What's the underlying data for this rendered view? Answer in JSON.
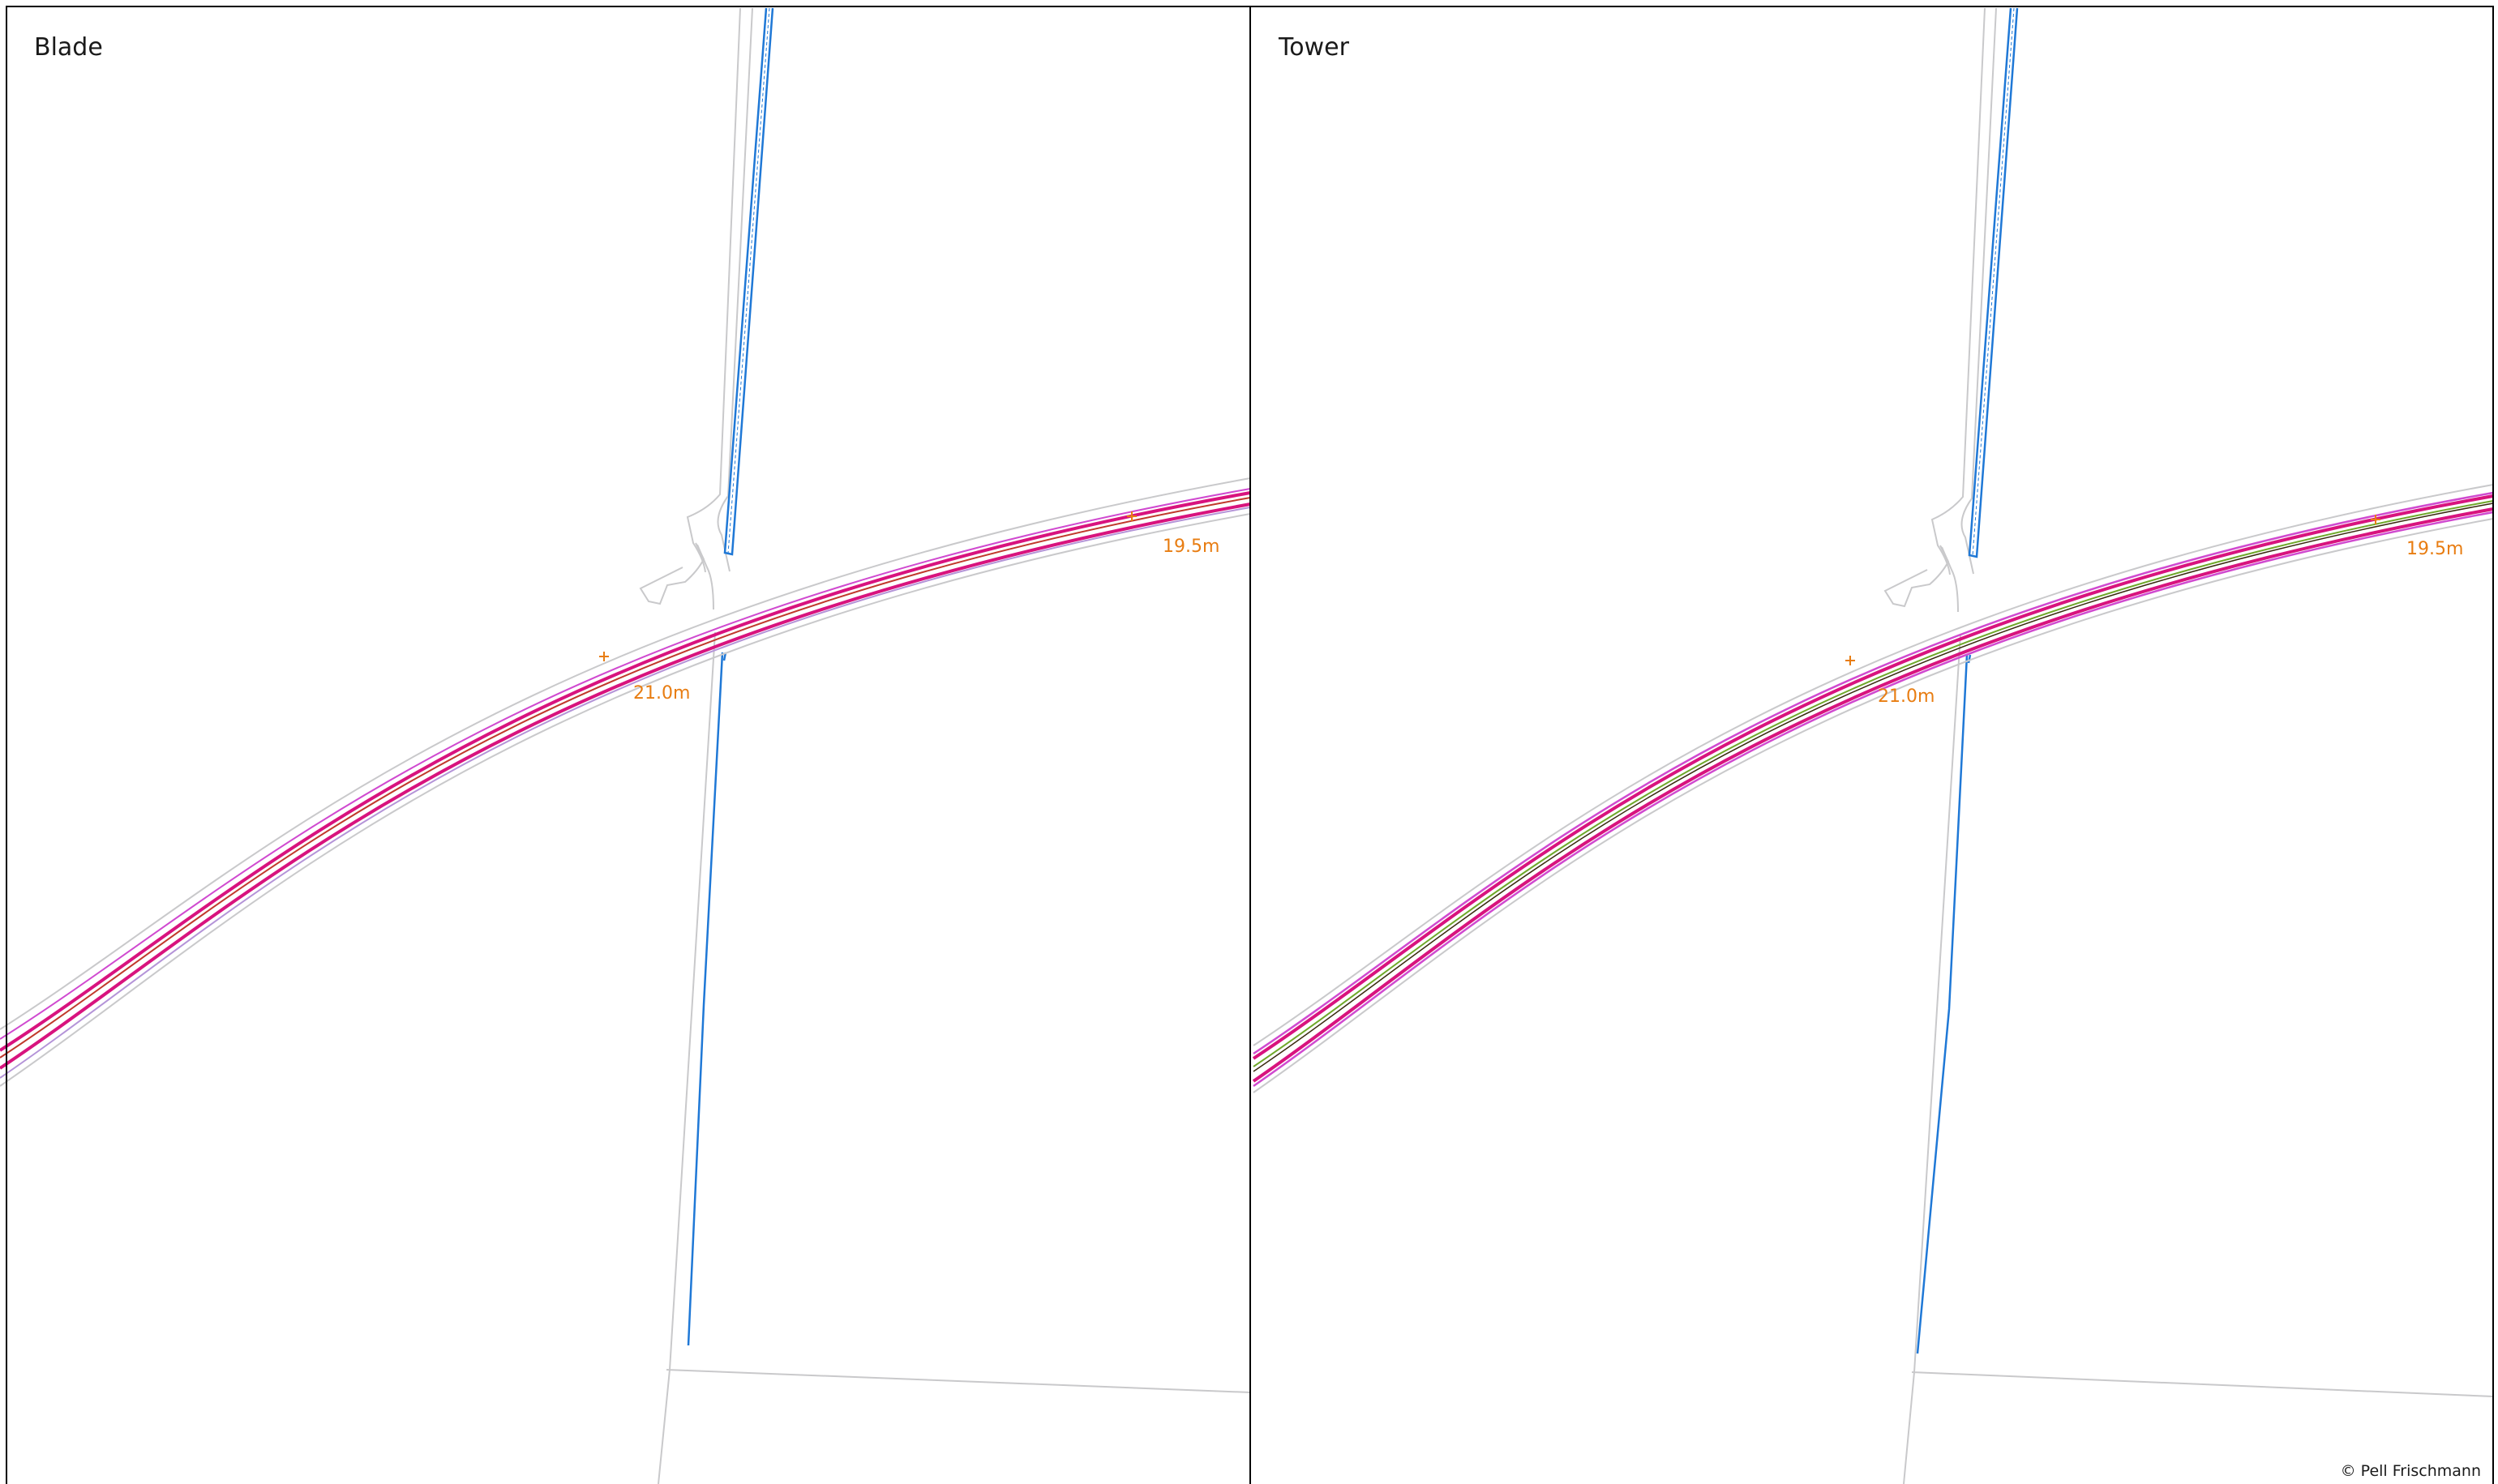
{
  "panels": [
    {
      "title": "Blade",
      "labels": {
        "chainage_left": "21.0m",
        "chainage_right": "19.5m"
      }
    },
    {
      "title": "Tower",
      "labels": {
        "chainage_left": "21.0m",
        "chainage_right": "19.5m"
      }
    }
  ],
  "copyright": "© Pell Frischmann",
  "colors": {
    "frame": "#000000",
    "road_edge_grey": "#c9c9cb",
    "swept_path_magenta": "#d8137e",
    "swept_path_outer": "#d04ad0",
    "swept_path_lilac": "#b494d8",
    "centreline_red": "#c0392b",
    "centreline_green": "#6fa82a",
    "watercourse_blue": "#1f78d6",
    "label_orange": "#e87d12"
  }
}
